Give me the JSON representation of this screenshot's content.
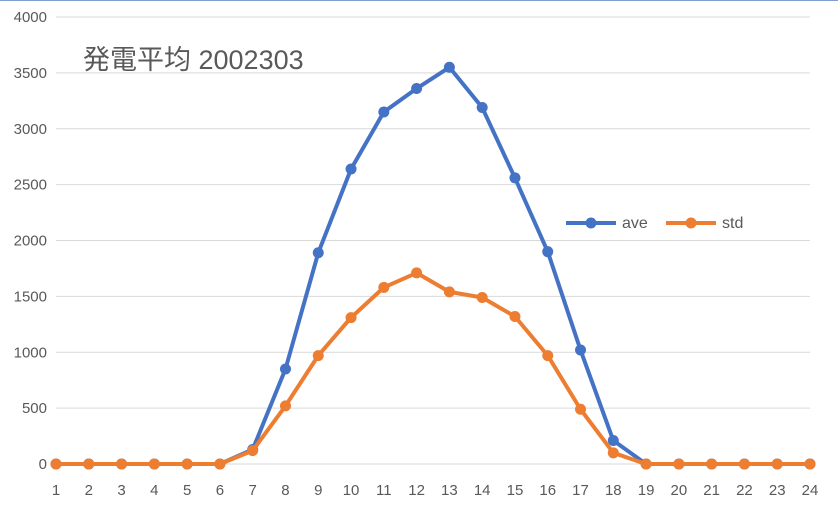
{
  "chart_data": {
    "type": "line",
    "title": "発電平均 2002303",
    "xlabel": "",
    "ylabel": "",
    "x": [
      1,
      2,
      3,
      4,
      5,
      6,
      7,
      8,
      9,
      10,
      11,
      12,
      13,
      14,
      15,
      16,
      17,
      18,
      19,
      20,
      21,
      22,
      23,
      24
    ],
    "ylim": [
      0,
      4000
    ],
    "yticks": [
      0,
      500,
      1000,
      1500,
      2000,
      2500,
      3000,
      3500,
      4000
    ],
    "grid": true,
    "legend": "right",
    "series": [
      {
        "name": "ave",
        "color": "#4472c4",
        "values": [
          0,
          0,
          0,
          0,
          0,
          0,
          130,
          850,
          1890,
          2640,
          3150,
          3360,
          3550,
          3190,
          2560,
          1900,
          1020,
          210,
          0,
          0,
          0,
          0,
          0,
          0
        ]
      },
      {
        "name": "std",
        "color": "#ed7d31",
        "values": [
          0,
          0,
          0,
          0,
          0,
          0,
          120,
          520,
          970,
          1310,
          1580,
          1710,
          1540,
          1490,
          1320,
          970,
          490,
          100,
          0,
          0,
          0,
          0,
          0,
          0
        ]
      }
    ]
  }
}
